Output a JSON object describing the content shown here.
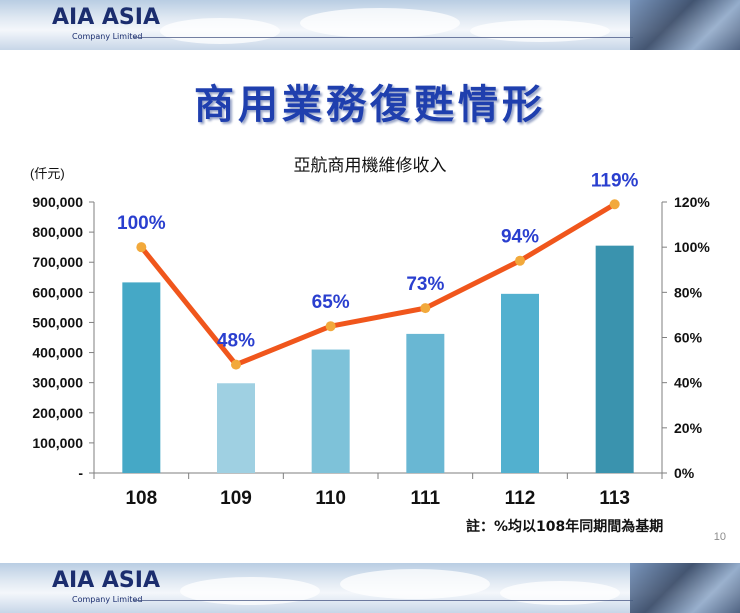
{
  "brand": {
    "logo_text": "AIA ASIA",
    "logo_sub": "Company Limited"
  },
  "slide": {
    "title": "商用業務復甦情形",
    "page_number": "10",
    "note": "註：%均以108年同期間為基期"
  },
  "colors": {
    "title": "#1f3fae",
    "line": "#f0561c",
    "marker": "#f2a93b",
    "label": "#2a3fcf"
  },
  "chart_data": {
    "type": "bar",
    "title": "亞航商用機維修收入",
    "ylabel": "(仟元)",
    "categories": [
      "108",
      "109",
      "110",
      "111",
      "112",
      "113"
    ],
    "values": [
      633000,
      298000,
      410000,
      462000,
      595000,
      755000
    ],
    "bar_colors": [
      "#45a8c6",
      "#9fd0e2",
      "#7ec2d9",
      "#69b7d3",
      "#52b0cf",
      "#3a93ae"
    ],
    "y_left": {
      "min": 0,
      "max": 900000,
      "step": 100000,
      "ticks": [
        "-",
        "100,000",
        "200,000",
        "300,000",
        "400,000",
        "500,000",
        "600,000",
        "700,000",
        "800,000",
        "900,000"
      ]
    },
    "line": {
      "values": [
        100,
        48,
        65,
        73,
        94,
        119
      ],
      "labels": [
        "100%",
        "48%",
        "65%",
        "73%",
        "94%",
        "119%"
      ]
    },
    "y_right": {
      "min": 0,
      "max": 120,
      "step": 20,
      "ticks": [
        "0%",
        "20%",
        "40%",
        "60%",
        "80%",
        "100%",
        "120%"
      ]
    },
    "grid": false,
    "legend": "none"
  }
}
